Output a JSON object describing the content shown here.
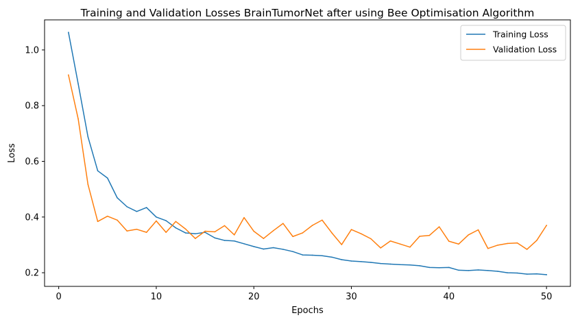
{
  "chart_data": {
    "type": "line",
    "title": "Training and Validation Losses BrainTumorNet after using Bee Optimisation Algorithm",
    "xlabel": "Epochs",
    "ylabel": "Loss",
    "xlim": [
      -1.45,
      52.45
    ],
    "ylim": [
      0.151,
      1.108
    ],
    "xticks": [
      0,
      10,
      20,
      30,
      40,
      50
    ],
    "yticks": [
      0.2,
      0.4,
      0.6,
      0.8,
      1.0
    ],
    "xtick_labels": [
      "0",
      "10",
      "20",
      "30",
      "40",
      "50"
    ],
    "ytick_labels": [
      "0.2",
      "0.4",
      "0.6",
      "0.8",
      "1.0"
    ],
    "grid": false,
    "legend_position": "top-right",
    "x": [
      1,
      2,
      3,
      4,
      5,
      6,
      7,
      8,
      9,
      10,
      11,
      12,
      13,
      14,
      15,
      16,
      17,
      18,
      19,
      20,
      21,
      22,
      23,
      24,
      25,
      26,
      27,
      28,
      29,
      30,
      31,
      32,
      33,
      34,
      35,
      36,
      37,
      38,
      39,
      40,
      41,
      42,
      43,
      44,
      45,
      46,
      47,
      48,
      49,
      50
    ],
    "series": [
      {
        "name": "Training Loss",
        "color": "#1f77b4",
        "values": [
          1.063,
          0.878,
          0.688,
          0.566,
          0.54,
          0.469,
          0.437,
          0.42,
          0.434,
          0.4,
          0.387,
          0.361,
          0.343,
          0.34,
          0.345,
          0.325,
          0.316,
          0.314,
          0.304,
          0.294,
          0.285,
          0.29,
          0.284,
          0.276,
          0.264,
          0.263,
          0.261,
          0.256,
          0.247,
          0.242,
          0.24,
          0.237,
          0.233,
          0.231,
          0.229,
          0.228,
          0.225,
          0.219,
          0.218,
          0.219,
          0.209,
          0.208,
          0.21,
          0.208,
          0.205,
          0.2,
          0.199,
          0.195,
          0.196,
          0.193
        ]
      },
      {
        "name": "Validation Loss",
        "color": "#ff7f0e",
        "values": [
          0.91,
          0.752,
          0.517,
          0.384,
          0.403,
          0.389,
          0.35,
          0.356,
          0.345,
          0.386,
          0.345,
          0.384,
          0.357,
          0.323,
          0.349,
          0.347,
          0.369,
          0.336,
          0.398,
          0.349,
          0.323,
          0.351,
          0.377,
          0.33,
          0.343,
          0.37,
          0.389,
          0.343,
          0.301,
          0.355,
          0.34,
          0.322,
          0.289,
          0.314,
          0.303,
          0.292,
          0.331,
          0.334,
          0.365,
          0.313,
          0.303,
          0.336,
          0.354,
          0.287,
          0.299,
          0.305,
          0.307,
          0.284,
          0.316,
          0.37
        ]
      }
    ]
  }
}
